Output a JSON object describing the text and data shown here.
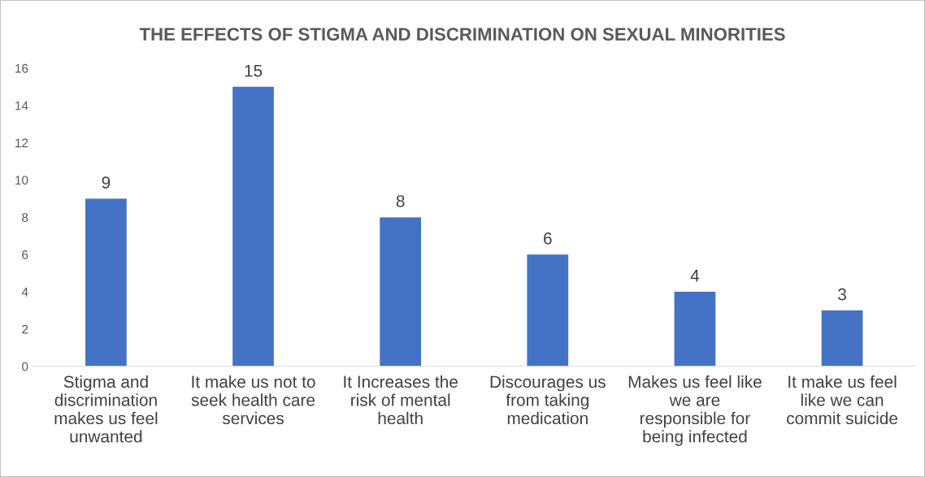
{
  "chart_data": {
    "type": "bar",
    "title": "THE EFFECTS OF STIGMA AND DISCRIMINATION ON SEXUAL MINORITIES",
    "categories": [
      "Stigma and\ndiscrimination\nmakes us feel\nunwanted",
      "It make us not to\nseek health care\nservices",
      "It Increases the\nrisk of mental\nhealth",
      "Discourages us\nfrom taking\nmedication",
      "Makes us feel like\nwe are\nresponsible for\nbeing infected",
      "It make us feel\nlike we can\ncommit suicide"
    ],
    "values": [
      9,
      15,
      8,
      6,
      4,
      3
    ],
    "color": "#4472c4",
    "ylim": [
      0,
      16
    ],
    "yticks": [
      0,
      2,
      4,
      6,
      8,
      10,
      12,
      14,
      16
    ],
    "grid": false,
    "data_labels": true
  }
}
